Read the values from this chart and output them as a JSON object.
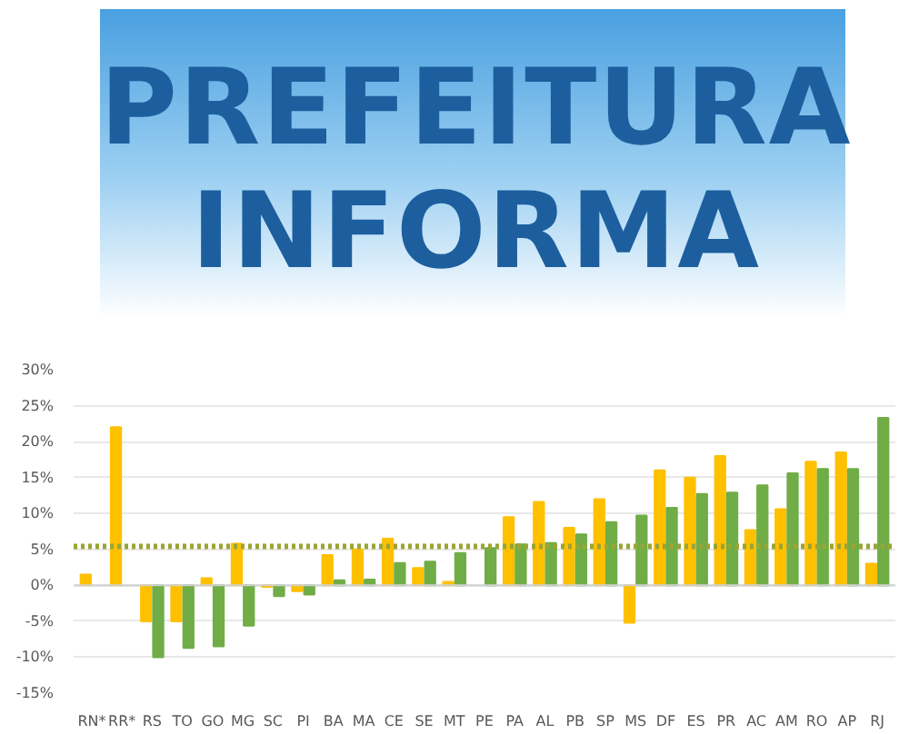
{
  "chart_data": {
    "type": "bar",
    "title": "PREFEITURA INFORMA",
    "categories": [
      "RN*",
      "RR*",
      "RS",
      "TO",
      "GO",
      "MG",
      "SC",
      "PI",
      "BA",
      "MA",
      "CE",
      "SE",
      "MT",
      "PE",
      "PA",
      "AL",
      "PB",
      "SP",
      "MS",
      "DF",
      "ES",
      "PR",
      "AC",
      "AM",
      "RO",
      "AP",
      "RJ"
    ],
    "series": [
      {
        "color": "#ffc000",
        "values": [
          1.5,
          22,
          -5,
          -5,
          1,
          5.8,
          -0.2,
          -0.8,
          4.2,
          5,
          6.5,
          2.4,
          0.5,
          null,
          9.5,
          11.6,
          8,
          12,
          -5.2,
          16,
          15,
          18,
          7.7,
          10.6,
          17.2,
          18.5,
          3
        ]
      },
      {
        "color": "#70ad47",
        "values": [
          null,
          null,
          -10,
          -8.7,
          -8.5,
          -5.6,
          -1.5,
          -1.3,
          0.7,
          0.8,
          3.1,
          3.3,
          4.5,
          5.2,
          5.7,
          5.9,
          7.1,
          8.8,
          9.7,
          10.8,
          12.7,
          12.9,
          13.9,
          15.6,
          16.2,
          16.2,
          23.3
        ]
      }
    ],
    "ref_lines": [
      {
        "axis": "y",
        "value": 5.4,
        "color": "#9aa533",
        "line_style": "dotted"
      }
    ],
    "ylim": [
      -15,
      30
    ],
    "yticks": [
      {
        "value": -15,
        "label": "-15%"
      },
      {
        "value": -10,
        "label": "-10%"
      },
      {
        "value": -5,
        "label": "-5%"
      },
      {
        "value": 0,
        "label": "0%"
      },
      {
        "value": 5,
        "label": "5%"
      },
      {
        "value": 10,
        "label": "10%"
      },
      {
        "value": 15,
        "label": "15%"
      },
      {
        "value": 20,
        "label": "20%"
      },
      {
        "value": 25,
        "label": "25%"
      },
      {
        "value": 30,
        "label": "30%"
      }
    ],
    "grid": "y"
  }
}
